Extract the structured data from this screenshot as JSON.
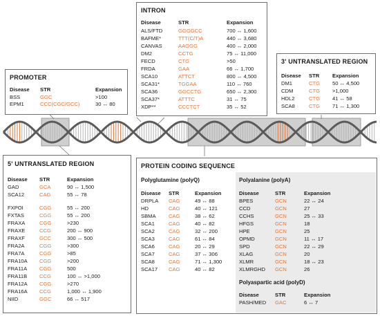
{
  "colors": {
    "str_accent": "#e0783a",
    "strand": "#5a5a5a",
    "highlight_band": "#cfcfcf",
    "panel_bg": "#ebebeb"
  },
  "headers": {
    "disease": "Disease",
    "str": "STR",
    "expansion": "Expansion"
  },
  "promoter": {
    "title": "PROMOTER",
    "rows": [
      {
        "disease": "BSS",
        "str": "GGC",
        "expansion": ">100"
      },
      {
        "disease": "EPM1",
        "str": "CCC(CGC/GCC)",
        "expansion": "30 ↔ 80"
      }
    ]
  },
  "intron": {
    "title": "INTRON",
    "rows": [
      {
        "disease": "ALS/FTD",
        "str": "GGGGCC",
        "expansion": "700 ↔ 1,600"
      },
      {
        "disease": "BAFME*",
        "str": "TTT(C/T)A",
        "expansion": "440 ↔ 3,680"
      },
      {
        "disease": "CANVAS",
        "str": "AAGGG",
        "expansion": "400 ↔ 2,000"
      },
      {
        "disease": "DM2",
        "str": "CCTG",
        "expansion": "75 ↔ 11,000"
      },
      {
        "disease": "FECD",
        "str": "CTG",
        "expansion": ">50"
      },
      {
        "disease": "FRDA",
        "str": "GAA",
        "expansion": "66 ↔ 1,700"
      },
      {
        "disease": "SCA10",
        "str": "ATTCT",
        "expansion": "800 ↔ 4,500"
      },
      {
        "disease": "SCA31*",
        "str": "TGGAA",
        "expansion": "110 ↔ 760"
      },
      {
        "disease": "SCA36",
        "str": "GGCCTG",
        "expansion": "650 ↔ 2,300"
      },
      {
        "disease": "SCA37*",
        "str": "ATTTC",
        "expansion": "31 ↔ 75"
      },
      {
        "disease": "XDP**",
        "str": "CCCTCT",
        "expansion": "35 ↔ 52"
      }
    ]
  },
  "utr3": {
    "title": "3' UNTRANSLATED REGION",
    "rows": [
      {
        "disease": "DM1",
        "str": "CTG",
        "expansion": "50 ↔ 4,500"
      },
      {
        "disease": "CDM",
        "str": "CTG",
        "expansion": ">1,000"
      },
      {
        "disease": "HDL2",
        "str": "CTG",
        "expansion": "41 ↔ 58"
      },
      {
        "disease": "SCA8",
        "str": "CTG",
        "expansion": "71 ↔ 1,300"
      }
    ]
  },
  "utr5": {
    "title": "5' UNTRANSLATED REGION",
    "group1": [
      {
        "disease": "GAD",
        "str": "GCA",
        "expansion": "90 ↔ 1,500"
      },
      {
        "disease": "SCA12",
        "str": "CAG",
        "expansion": "55 ↔ 78"
      }
    ],
    "group2": [
      {
        "disease": "FXPOI",
        "str": "CGG",
        "expansion": "55 ↔ 200"
      },
      {
        "disease": "FXTAS",
        "str": "CGG",
        "expansion": "55 ↔ 200"
      },
      {
        "disease": "FRAXA",
        "str": "CGG",
        "expansion": ">230"
      },
      {
        "disease": "FRAXE",
        "str": "CCG",
        "expansion": "200 ↔ 900"
      },
      {
        "disease": "FRAXF",
        "str": "GCC",
        "expansion": "300 ↔ 500"
      },
      {
        "disease": "FRA2A",
        "str": "CGG",
        "expansion": ">300"
      },
      {
        "disease": "FRA7A",
        "str": "CGG",
        "expansion": ">85"
      },
      {
        "disease": "FRA10A",
        "str": "CGG",
        "expansion": ">200"
      },
      {
        "disease": "FRA11A",
        "str": "CGG",
        "expansion": "500"
      },
      {
        "disease": "FRA11B",
        "str": "CCG",
        "expansion": "100 ↔ >1,000"
      },
      {
        "disease": "FRA12A",
        "str": "CGG",
        "expansion": ">270"
      },
      {
        "disease": "FRA16A",
        "str": "CCG",
        "expansion": "1,000 ↔ 1,900"
      },
      {
        "disease": "NIID",
        "str": "GGC",
        "expansion": "66 ↔ 517"
      }
    ]
  },
  "coding": {
    "title": "PROTEIN CODING SEQUENCE",
    "polyq": {
      "title": "Polyglutamine (polyQ)",
      "rows": [
        {
          "disease": "DRPLA",
          "str": "CAG",
          "expansion": "49 ↔ 88"
        },
        {
          "disease": "HD",
          "str": "CAG",
          "expansion": "40 ↔ 121"
        },
        {
          "disease": "SBMA",
          "str": "CAG",
          "expansion": "38 ↔ 62"
        },
        {
          "disease": "SCA1",
          "str": "CAG",
          "expansion": "40 ↔ 82"
        },
        {
          "disease": "SCA2",
          "str": "CAG",
          "expansion": "32 ↔ 200"
        },
        {
          "disease": "SCA3",
          "str": "CAG",
          "expansion": "61 ↔ 84"
        },
        {
          "disease": "SCA6",
          "str": "CAG",
          "expansion": "20 ↔ 29"
        },
        {
          "disease": "SCA7",
          "str": "CAG",
          "expansion": "37 ↔ 306"
        },
        {
          "disease": "SCA8",
          "str": "CAG",
          "expansion": "71 ↔ 1,300"
        },
        {
          "disease": "SCA17",
          "str": "CAG",
          "expansion": "40 ↔ 82"
        }
      ]
    },
    "polya": {
      "title": "Polyalanine (polyA)",
      "rows": [
        {
          "disease": "BPES",
          "str": "GCN",
          "expansion": "22 ↔ 24"
        },
        {
          "disease": "CCD",
          "str": "GCN",
          "expansion": "27"
        },
        {
          "disease": "CCHS",
          "str": "GCN",
          "expansion": "25 ↔ 33"
        },
        {
          "disease": "HFGS",
          "str": "GCN",
          "expansion": "18"
        },
        {
          "disease": "HPE",
          "str": "GCN",
          "expansion": "25"
        },
        {
          "disease": "OPMD",
          "str": "GCN",
          "expansion": "11 ↔ 17"
        },
        {
          "disease": "SPD",
          "str": "GCN",
          "expansion": "22 ↔ 29"
        },
        {
          "disease": "XLAG",
          "str": "GCN",
          "expansion": "20"
        },
        {
          "disease": "XLMR",
          "str": "GCN",
          "expansion": "18 ↔ 23"
        },
        {
          "disease": "XLMRGHD",
          "str": "GCN",
          "expansion": "26"
        }
      ]
    },
    "polyd": {
      "title": "Polyaspartic acid (polyD)",
      "rows": [
        {
          "disease": "PASH/MED",
          "str": "GAC",
          "expansion": "6 ↔ 7"
        }
      ]
    }
  }
}
